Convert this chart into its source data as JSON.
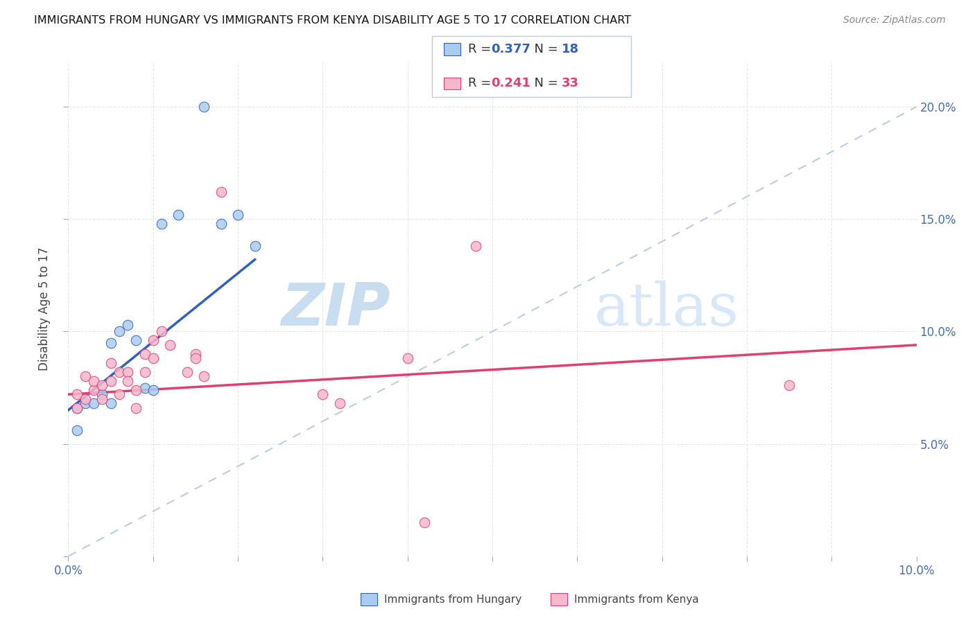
{
  "title": "IMMIGRANTS FROM HUNGARY VS IMMIGRANTS FROM KENYA DISABILITY AGE 5 TO 17 CORRELATION CHART",
  "source": "Source: ZipAtlas.com",
  "ylabel": "Disability Age 5 to 17",
  "xlim": [
    0.0,
    0.1
  ],
  "ylim": [
    0.0,
    0.22
  ],
  "xticks": [
    0.0,
    0.01,
    0.02,
    0.03,
    0.04,
    0.05,
    0.06,
    0.07,
    0.08,
    0.09,
    0.1
  ],
  "yticks": [
    0.0,
    0.05,
    0.1,
    0.15,
    0.2
  ],
  "xtick_labels": [
    "0.0%",
    "",
    "",
    "",
    "",
    "",
    "",
    "",
    "",
    "",
    "10.0%"
  ],
  "ytick_right_labels": [
    "",
    "5.0%",
    "10.0%",
    "15.0%",
    "20.0%"
  ],
  "hungary_R": "0.377",
  "hungary_N": "18",
  "kenya_R": "0.241",
  "kenya_N": "33",
  "hungary_dot_color": "#aaccee",
  "kenya_dot_color": "#f5b8cc",
  "hungary_line_color": "#3060c0",
  "kenya_line_color": "#e04070",
  "ref_line_color": "#b8c8d8",
  "hungary_label": "Immigrants from Hungary",
  "kenya_label": "Immigrants from Kenya",
  "hungary_x": [
    0.001,
    0.001,
    0.002,
    0.003,
    0.004,
    0.005,
    0.005,
    0.006,
    0.007,
    0.008,
    0.009,
    0.01,
    0.011,
    0.013,
    0.016,
    0.018,
    0.02,
    0.022
  ],
  "hungary_y": [
    0.066,
    0.056,
    0.068,
    0.068,
    0.072,
    0.095,
    0.068,
    0.1,
    0.103,
    0.096,
    0.075,
    0.074,
    0.148,
    0.152,
    0.2,
    0.148,
    0.152,
    0.138
  ],
  "kenya_x": [
    0.001,
    0.001,
    0.002,
    0.002,
    0.003,
    0.003,
    0.004,
    0.004,
    0.005,
    0.005,
    0.006,
    0.006,
    0.007,
    0.007,
    0.008,
    0.008,
    0.009,
    0.009,
    0.01,
    0.01,
    0.011,
    0.012,
    0.014,
    0.015,
    0.015,
    0.016,
    0.018,
    0.03,
    0.032,
    0.04,
    0.042,
    0.048,
    0.085
  ],
  "kenya_y": [
    0.066,
    0.072,
    0.07,
    0.08,
    0.074,
    0.078,
    0.07,
    0.076,
    0.078,
    0.086,
    0.072,
    0.082,
    0.082,
    0.078,
    0.066,
    0.074,
    0.09,
    0.082,
    0.096,
    0.088,
    0.1,
    0.094,
    0.082,
    0.09,
    0.088,
    0.08,
    0.162,
    0.072,
    0.068,
    0.088,
    0.015,
    0.138,
    0.076
  ],
  "hungary_line_x": [
    0.0,
    0.022
  ],
  "hungary_line_y": [
    0.065,
    0.132
  ],
  "kenya_line_x": [
    0.0,
    0.1
  ],
  "kenya_line_y": [
    0.072,
    0.094
  ],
  "ref_line_x": [
    0.0,
    0.1
  ],
  "ref_line_y": [
    0.0,
    0.2
  ]
}
